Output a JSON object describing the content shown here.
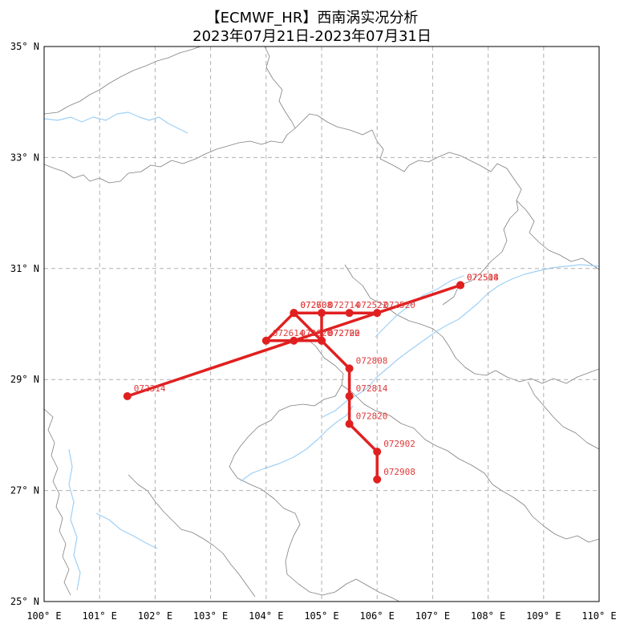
{
  "title_line1": "【ECMWF_HR】西南涡实况分析",
  "title_line2": "2023年07月21日-2023年07月31日",
  "axes": {
    "lon_range": [
      100,
      110
    ],
    "lat_range": [
      25,
      35
    ],
    "x_ticks": [
      "100° E",
      "101° E",
      "102° E",
      "103° E",
      "104° E",
      "105° E",
      "106° E",
      "107° E",
      "108° E",
      "109° E",
      "110° E"
    ],
    "y_ticks": [
      "25° N",
      "27° N",
      "29° N",
      "31° N",
      "33° N",
      "35° N"
    ],
    "gridlines": true
  },
  "colors": {
    "track": "#e02020",
    "track_label": "#e03a3a",
    "grid": "#b0b0b0",
    "boundary": "#808080",
    "river": "#9fd0f5"
  },
  "chart_data": {
    "type": "track",
    "points": [
      {
        "label": "072314",
        "lon": 101.5,
        "lat": 28.7
      },
      {
        "label": "072514",
        "lon": 107.5,
        "lat": 30.7
      },
      {
        "label": "072508",
        "lon": 107.5,
        "lat": 30.7
      },
      {
        "label": "072520",
        "lon": 106.0,
        "lat": 30.2
      },
      {
        "label": "072522",
        "lon": 105.5,
        "lat": 30.2
      },
      {
        "label": "072608",
        "lon": 104.5,
        "lat": 30.2
      },
      {
        "label": "072614",
        "lon": 104.0,
        "lat": 29.7
      },
      {
        "label": "072620",
        "lon": 104.5,
        "lat": 29.7
      },
      {
        "label": "072702",
        "lon": 105.0,
        "lat": 29.7
      },
      {
        "label": "072708",
        "lon": 104.5,
        "lat": 30.2
      },
      {
        "label": "072714",
        "lon": 105.0,
        "lat": 30.2
      },
      {
        "label": "072720",
        "lon": 105.0,
        "lat": 29.7
      },
      {
        "label": "072808",
        "lon": 105.5,
        "lat": 29.2
      },
      {
        "label": "072814",
        "lon": 105.5,
        "lat": 28.7
      },
      {
        "label": "072820",
        "lon": 105.5,
        "lat": 28.2
      },
      {
        "label": "072902",
        "lon": 106.0,
        "lat": 27.7
      },
      {
        "label": "072908",
        "lon": 106.0,
        "lat": 27.2
      }
    ]
  }
}
